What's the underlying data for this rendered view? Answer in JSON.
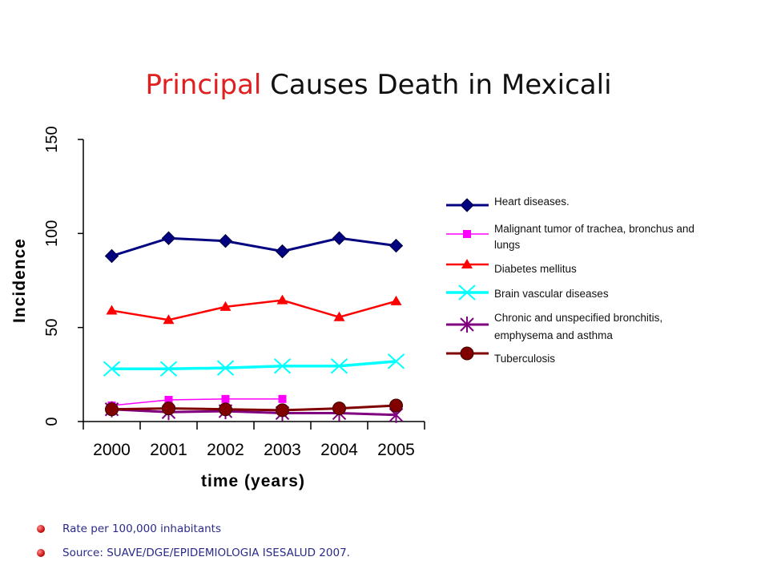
{
  "slide": {
    "title_highlight": "Principal",
    "title_rest": " Causes Death in Mexicali",
    "footnotes": [
      "Rate per 100,000 inhabitants",
      "Source: SUAVE/DGE/EPIDEMIOLOGIA ISESALUD 2007."
    ],
    "highlight_color": "#e02020",
    "footnote_color": "#2a2a8a"
  },
  "chart_data": {
    "type": "line",
    "title": "",
    "xlabel": "time (years)",
    "ylabel": "Incidence",
    "categories": [
      "2000",
      "2001",
      "2002",
      "2003",
      "2004",
      "2005"
    ],
    "ylim": [
      0,
      150
    ],
    "yticks": [
      "0",
      "50",
      "100",
      "150"
    ],
    "grid": false,
    "legend_position": "right",
    "series": [
      {
        "name": "Heart diseases.",
        "color": "#000080",
        "marker": "diamond",
        "values": [
          88,
          97.5,
          96,
          90.5,
          97.5,
          93.5
        ]
      },
      {
        "name": "Malignant tumor of  trachea, bronchus and lungs",
        "color": "#ff00ff",
        "marker": "square",
        "values": [
          8.5,
          11.5,
          12,
          12,
          null,
          null
        ]
      },
      {
        "name": "Diabetes mellitus",
        "color": "#ff0000",
        "marker": "triangle",
        "values": [
          59,
          54,
          61,
          64.5,
          55.5,
          64
        ]
      },
      {
        "name": "Brain vascular diseases",
        "color": "#00ffff",
        "marker": "x",
        "values": [
          28,
          28,
          28.5,
          29.5,
          29.5,
          32
        ]
      },
      {
        "name": "Chronic and unspecified bronchitis, emphysema and asthma",
        "color": "#800080",
        "marker": "asterisk",
        "values": [
          6.5,
          5,
          5.5,
          4.5,
          4.5,
          3.5
        ]
      },
      {
        "name": "Tuberculosis",
        "color": "#800000",
        "marker": "circle",
        "values": [
          6.5,
          7,
          6.5,
          6,
          7,
          8.5
        ]
      }
    ]
  }
}
